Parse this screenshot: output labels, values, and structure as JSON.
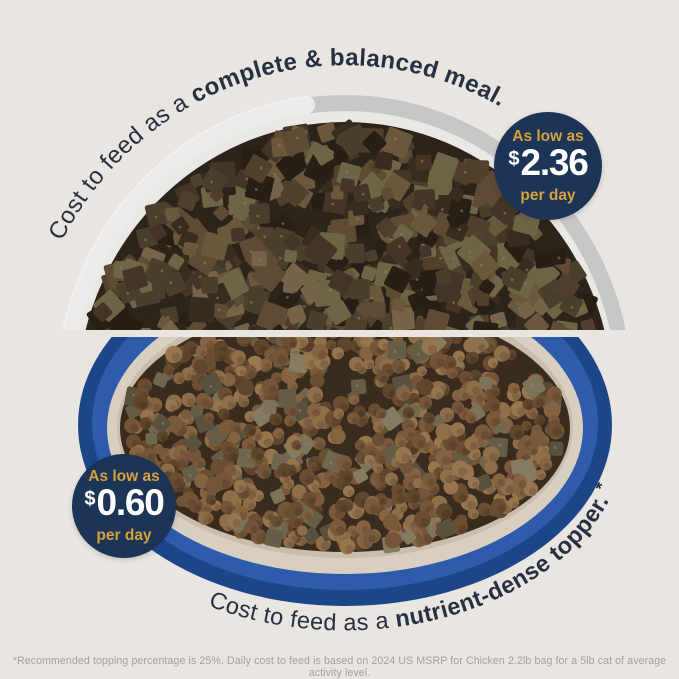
{
  "top_section": {
    "curved_text_regular": "Cost to feed as a ",
    "curved_text_bold": "complete & balanced meal.",
    "badge": {
      "eyebrow": "As low as",
      "currency": "$",
      "amount": "2.36",
      "suffix": "per day"
    }
  },
  "bottom_section": {
    "curved_text_regular": "Cost to feed as a ",
    "curved_text_bold": "nutrient-dense topper.",
    "footnote_marker": " *",
    "badge": {
      "eyebrow": "As low as",
      "currency": "$",
      "amount": "0.60",
      "suffix": "per day"
    }
  },
  "footnote": "*Recommended topping percentage is 25%. Daily cost to feed is based on 2024 US MSRP for Chicken 2.2lb bag for a 5lb cat of average activity level.",
  "colors": {
    "background": "#e9e5e0",
    "badge_navy": "#1c3456",
    "accent_gold": "#d7a13e",
    "headline_navy": "#273041",
    "bowl_blue": "#2e5cab",
    "bowl_gray": "#c8c7c6",
    "footnote_gray": "#a8a19b"
  }
}
